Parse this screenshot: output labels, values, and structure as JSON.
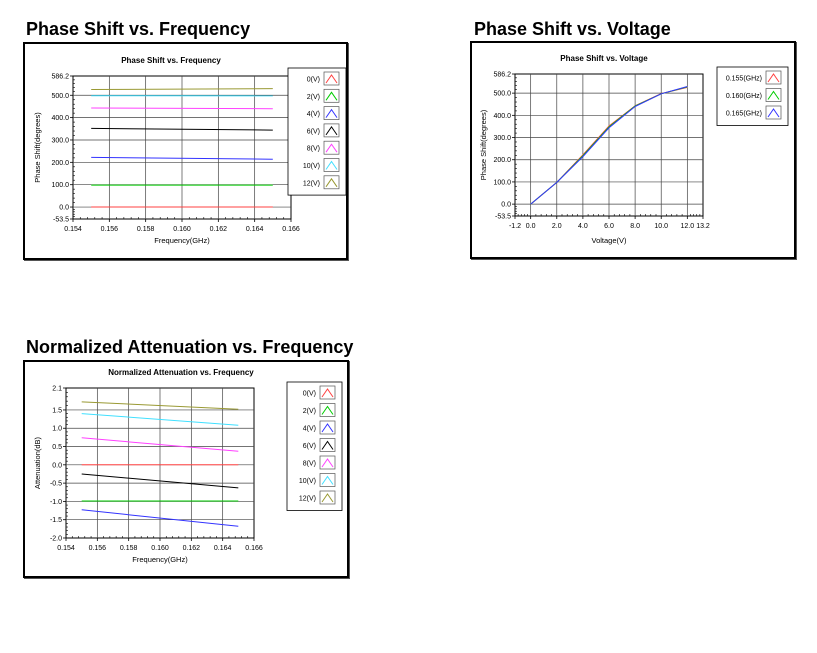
{
  "sections": [
    {
      "heading": "Phase Shift vs. Frequency"
    },
    {
      "heading": "Phase Shift vs. Voltage"
    },
    {
      "heading": "Normalized Attenuation vs. Frequency"
    }
  ],
  "chart_data": [
    {
      "type": "line",
      "title": "Phase Shift vs. Frequency",
      "xlabel": "Frequency(GHz)",
      "ylabel": "Phase Shift(degrees)",
      "xlim": [
        0.154,
        0.166
      ],
      "ylim": [
        -53.5,
        586.2
      ],
      "xticks": [
        "0.154",
        "0.156",
        "0.158",
        "0.160",
        "0.162",
        "0.164",
        "0.166"
      ],
      "yticks": [
        "-53.5",
        "0.0",
        "100.0",
        "200.0",
        "300.0",
        "400.0",
        "500.0",
        "586.2"
      ],
      "ytick_values": [
        -53.5,
        0,
        100,
        200,
        300,
        400,
        500,
        586.2
      ],
      "grid": true,
      "legend_position": "right",
      "x": [
        0.155,
        0.165
      ],
      "series": [
        {
          "name": "0(V)",
          "color": "#ff4040",
          "values": [
            0,
            0
          ]
        },
        {
          "name": "2(V)",
          "color": "#00cc00",
          "values": [
            98,
            98
          ]
        },
        {
          "name": "4(V)",
          "color": "#3333ff",
          "values": [
            222,
            214
          ]
        },
        {
          "name": "6(V)",
          "color": "#000000",
          "values": [
            352,
            344
          ]
        },
        {
          "name": "8(V)",
          "color": "#ff40ff",
          "values": [
            443,
            440
          ]
        },
        {
          "name": "10(V)",
          "color": "#40e0ff",
          "values": [
            498,
            497
          ]
        },
        {
          "name": "12(V)",
          "color": "#999933",
          "values": [
            526,
            530
          ]
        }
      ]
    },
    {
      "type": "line",
      "title": "Phase Shift vs. Voltage",
      "xlabel": "Voltage(V)",
      "ylabel": "Phase Shift(degrees)",
      "xlim": [
        -1.2,
        13.2
      ],
      "ylim": [
        -53.5,
        586.2
      ],
      "xticks": [
        "-1.2",
        "0.0",
        "2.0",
        "4.0",
        "6.0",
        "8.0",
        "10.0",
        "12.0",
        "13.2"
      ],
      "xtick_values": [
        -1.2,
        0,
        2,
        4,
        6,
        8,
        10,
        12,
        13.2
      ],
      "yticks": [
        "-53.5",
        "0.0",
        "100.0",
        "200.0",
        "300.0",
        "400.0",
        "500.0",
        "586.2"
      ],
      "ytick_values": [
        -53.5,
        0,
        100,
        200,
        300,
        400,
        500,
        586.2
      ],
      "grid": true,
      "legend_position": "right",
      "x": [
        0,
        2,
        4,
        6,
        8,
        10,
        12
      ],
      "series": [
        {
          "name": "0.155(GHz)",
          "color": "#ff4040",
          "values": [
            0,
            98,
            222,
            352,
            443,
            498,
            526
          ]
        },
        {
          "name": "0.160(GHz)",
          "color": "#00cc00",
          "values": [
            0,
            98,
            218,
            348,
            442,
            497,
            528
          ]
        },
        {
          "name": "0.165(GHz)",
          "color": "#3333ff",
          "values": [
            0,
            98,
            214,
            344,
            440,
            497,
            530
          ]
        }
      ]
    },
    {
      "type": "line",
      "title": "Normalized Attenuation vs. Frequency",
      "xlabel": "Frequency(GHz)",
      "ylabel": "Attenuation(dB)",
      "xlim": [
        0.154,
        0.166
      ],
      "ylim": [
        -2.0,
        2.1
      ],
      "xticks": [
        "0.154",
        "0.156",
        "0.158",
        "0.160",
        "0.162",
        "0.164",
        "0.166"
      ],
      "yticks": [
        "-2.0",
        "-1.5",
        "-1.0",
        "-0.5",
        "0.0",
        "0.5",
        "1.0",
        "1.5",
        "2.1"
      ],
      "ytick_values": [
        -2.0,
        -1.5,
        -1.0,
        -0.5,
        0.0,
        0.5,
        1.0,
        1.5,
        2.1
      ],
      "grid": true,
      "legend_position": "right",
      "x": [
        0.155,
        0.165
      ],
      "series": [
        {
          "name": "0(V)",
          "color": "#ff4040",
          "values": [
            0.0,
            0.0
          ]
        },
        {
          "name": "2(V)",
          "color": "#00cc00",
          "values": [
            -0.99,
            -0.99
          ]
        },
        {
          "name": "4(V)",
          "color": "#3333ff",
          "values": [
            -1.23,
            -1.68
          ]
        },
        {
          "name": "6(V)",
          "color": "#000000",
          "values": [
            -0.25,
            -0.63
          ]
        },
        {
          "name": "8(V)",
          "color": "#ff40ff",
          "values": [
            0.74,
            0.37
          ]
        },
        {
          "name": "10(V)",
          "color": "#40e0ff",
          "values": [
            1.4,
            1.08
          ]
        },
        {
          "name": "12(V)",
          "color": "#999933",
          "values": [
            1.72,
            1.52
          ]
        }
      ]
    }
  ]
}
